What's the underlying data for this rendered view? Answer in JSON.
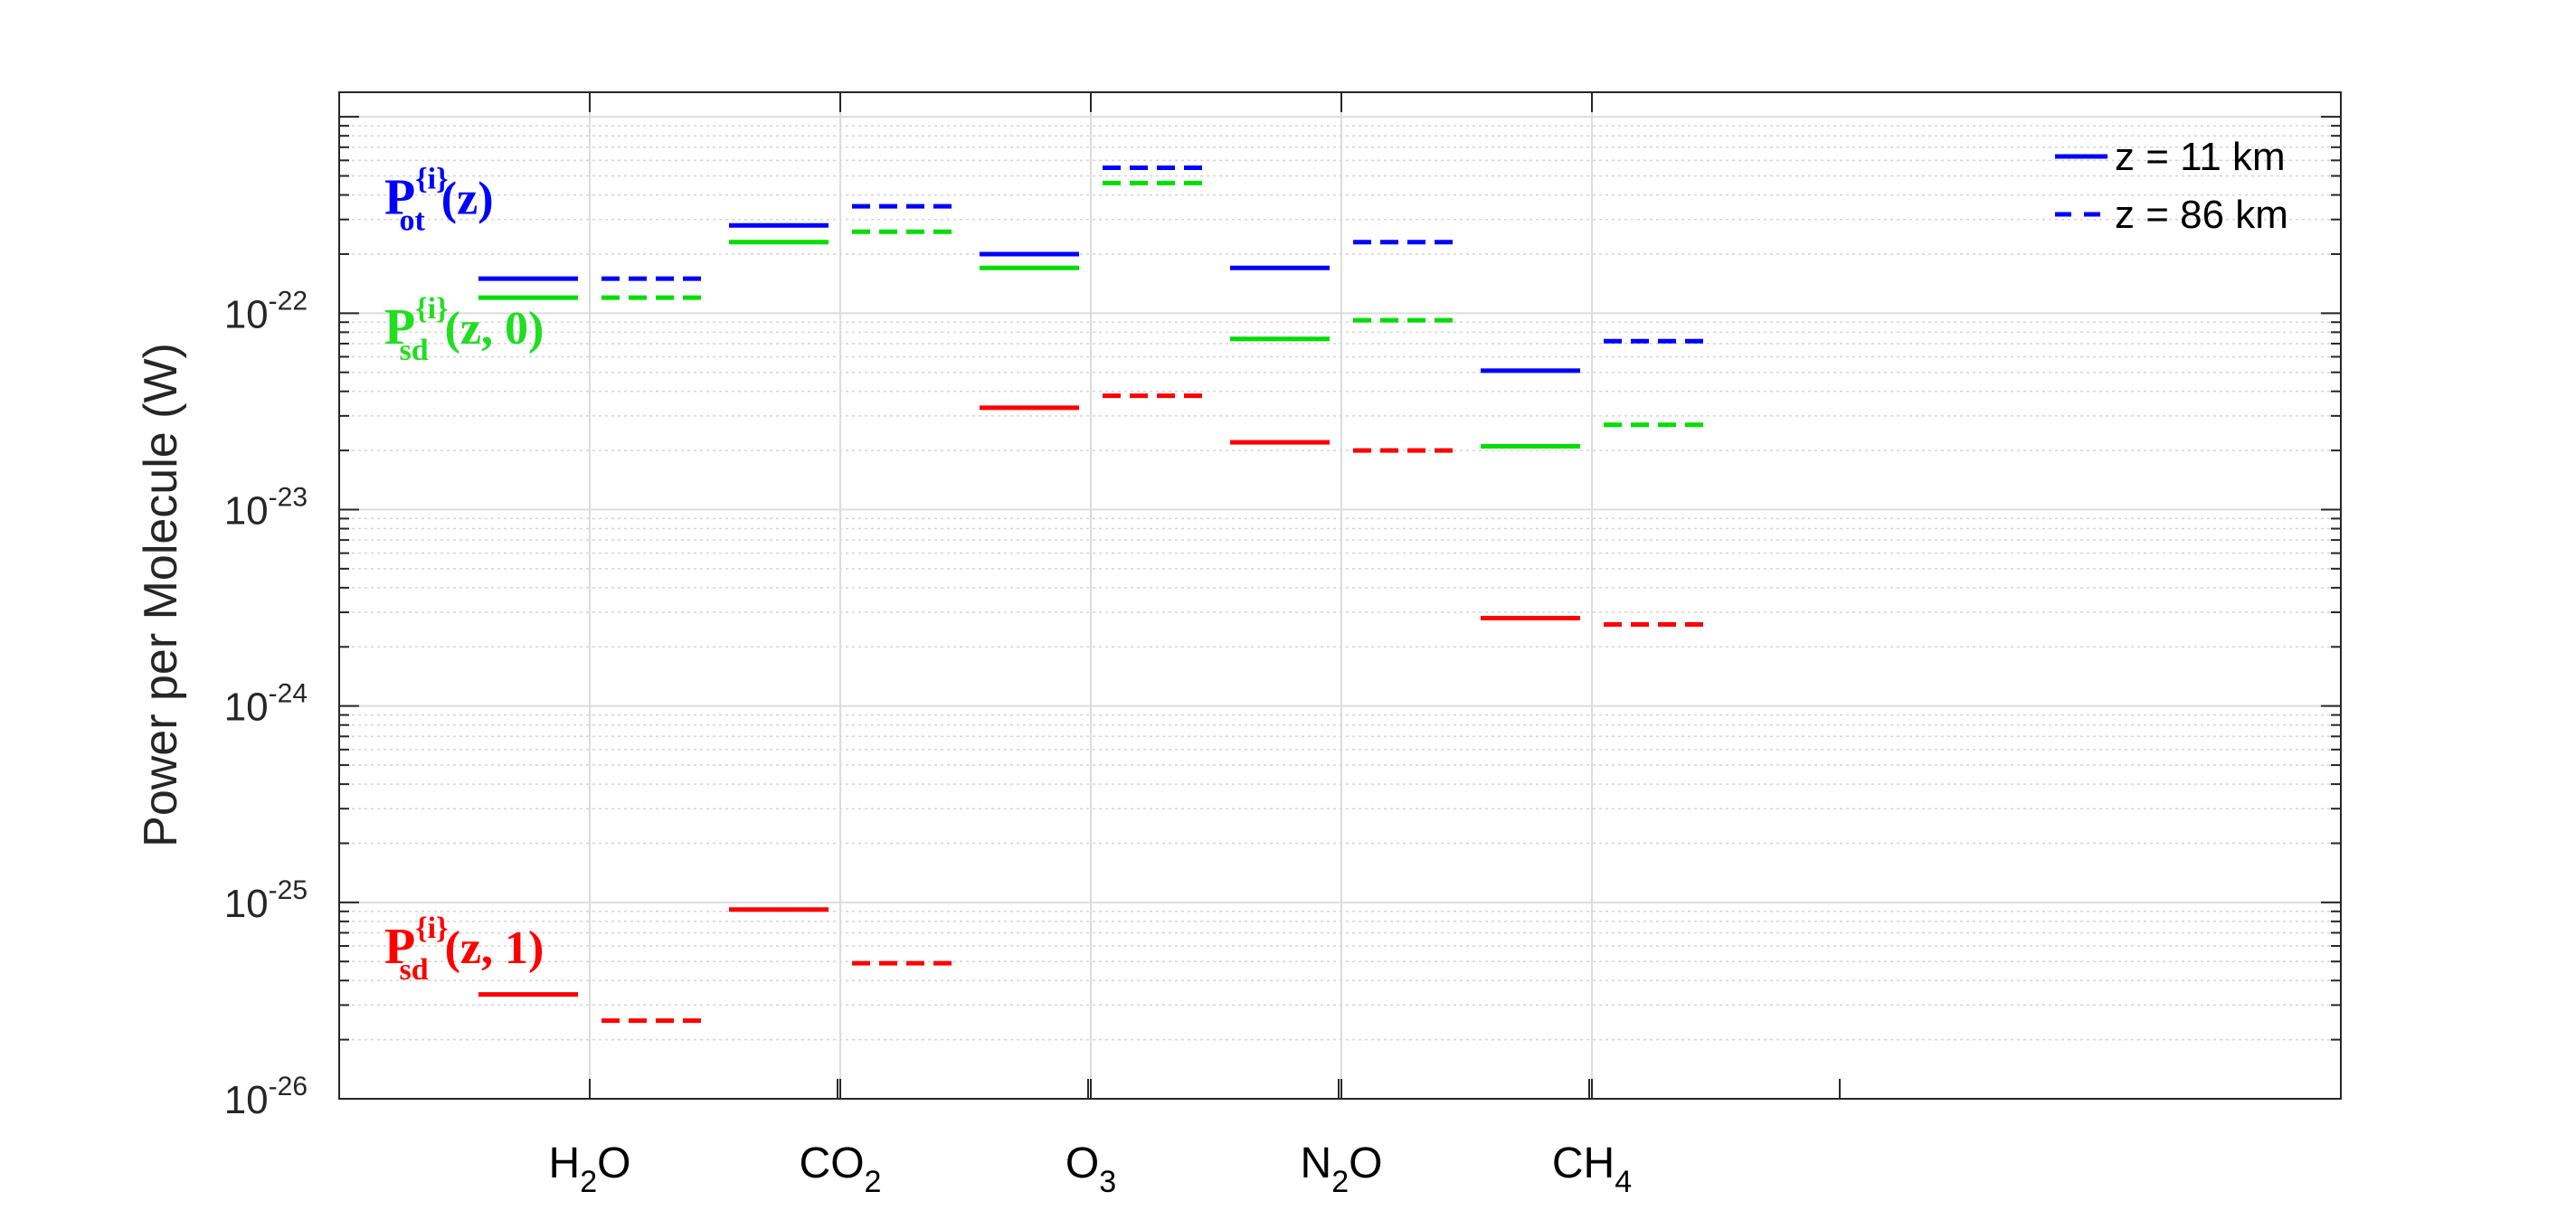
{
  "chart_data": {
    "type": "scatter",
    "title": "",
    "xlabel": "",
    "ylabel": "Power per Molecule (W)",
    "yscale": "log",
    "ylim": [
      1e-26,
      1e-21
    ],
    "grid": true,
    "categories": [
      {
        "base": "H",
        "sub": "2",
        "tail": "O"
      },
      {
        "base": "CO",
        "sub": "2",
        "tail": ""
      },
      {
        "base": "O",
        "sub": "3",
        "tail": ""
      },
      {
        "base": "N",
        "sub": "2",
        "tail": "O"
      },
      {
        "base": "CH",
        "sub": "4",
        "tail": ""
      }
    ],
    "y_tick_labels": [
      {
        "base": "10",
        "exp": "-26"
      },
      {
        "base": "10",
        "exp": "-25"
      },
      {
        "base": "10",
        "exp": "-24"
      },
      {
        "base": "10",
        "exp": "-23"
      },
      {
        "base": "10",
        "exp": "-22"
      }
    ],
    "series": [
      {
        "quantity": "P_ot",
        "altitude_km": 11,
        "color": "#0000ff",
        "line": "solid",
        "values": [
          1.5e-22,
          2.8e-22,
          2e-22,
          1.7e-22,
          5.1e-23
        ]
      },
      {
        "quantity": "P_ot",
        "altitude_km": 86,
        "color": "#0000ff",
        "line": "dashed",
        "values": [
          1.5e-22,
          3.5e-22,
          5.5e-22,
          2.3e-22,
          7.2e-23
        ]
      },
      {
        "quantity": "P_sd(z,0)",
        "altitude_km": 11,
        "color": "#00dd00",
        "line": "solid",
        "values": [
          1.2e-22,
          2.3e-22,
          1.7e-22,
          7.4e-23,
          2.1e-23
        ]
      },
      {
        "quantity": "P_sd(z,0)",
        "altitude_km": 86,
        "color": "#00dd00",
        "line": "dashed",
        "values": [
          1.2e-22,
          2.6e-22,
          4.6e-22,
          9.2e-23,
          2.7e-23
        ]
      },
      {
        "quantity": "P_sd(z,1)",
        "altitude_km": 11,
        "color": "#ff0000",
        "line": "solid",
        "values": [
          3.4e-26,
          9.2e-26,
          3.3e-23,
          2.2e-23,
          2.8e-24
        ]
      },
      {
        "quantity": "P_sd(z,1)",
        "altitude_km": 86,
        "color": "#ff0000",
        "line": "dashed",
        "values": [
          2.5e-26,
          4.9e-26,
          3.8e-23,
          2e-23,
          2.6e-24
        ]
      }
    ],
    "legend": {
      "placement": "top-right",
      "entries": [
        {
          "label": "z = 11 km",
          "line": "solid",
          "color": "#0000ff"
        },
        {
          "label": "z = 86 km",
          "line": "dashed",
          "color": "#0000ff"
        }
      ]
    },
    "annotations": [
      {
        "id": "pot",
        "main": "P",
        "sub": "ot",
        "sup": "{i}",
        "args": "(z)",
        "color": "#0000ff",
        "value": 3.2e-22
      },
      {
        "id": "psd0",
        "main": "P",
        "sub": "sd",
        "sup": "{i}",
        "args": "(z, 0)",
        "color": "#22dd22",
        "value": 7e-23
      },
      {
        "id": "psd1",
        "main": "P",
        "sub": "sd",
        "sup": "{i}",
        "args": "(z, 1)",
        "color": "#ff0000",
        "value": 4.9e-26
      }
    ]
  }
}
